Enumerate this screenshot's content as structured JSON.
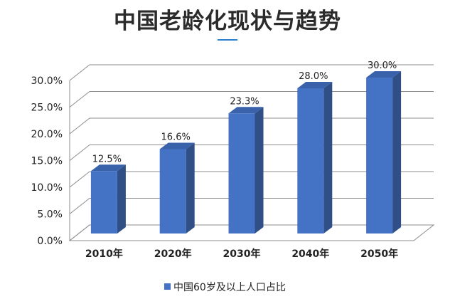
{
  "header": {
    "title": "中国老龄化现状与趋势"
  },
  "chart_data": {
    "type": "bar",
    "title": "中国老龄化现状与趋势",
    "categories": [
      "2010年",
      "2020年",
      "2030年",
      "2040年",
      "2050年"
    ],
    "series": [
      {
        "name": "中国60岁及以上人口占比",
        "values": [
          12.5,
          16.6,
          23.3,
          28.0,
          30.0
        ]
      }
    ],
    "data_labels": [
      "12.5%",
      "16.6%",
      "23.3%",
      "28.0%",
      "30.0%"
    ],
    "y_ticks": [
      "0.0%",
      "5.0%",
      "10.0%",
      "15.0%",
      "20.0%",
      "25.0%",
      "30.0%"
    ],
    "ylim": [
      0,
      30
    ],
    "grid": true,
    "legend_position": "bottom",
    "three_d": true,
    "colors": {
      "bar_front": "#4472c4",
      "bar_side": "#2f4f86",
      "bar_top": "#3a62ab",
      "grid": "#8c8c8c",
      "accent": "#2a7fd4"
    }
  }
}
